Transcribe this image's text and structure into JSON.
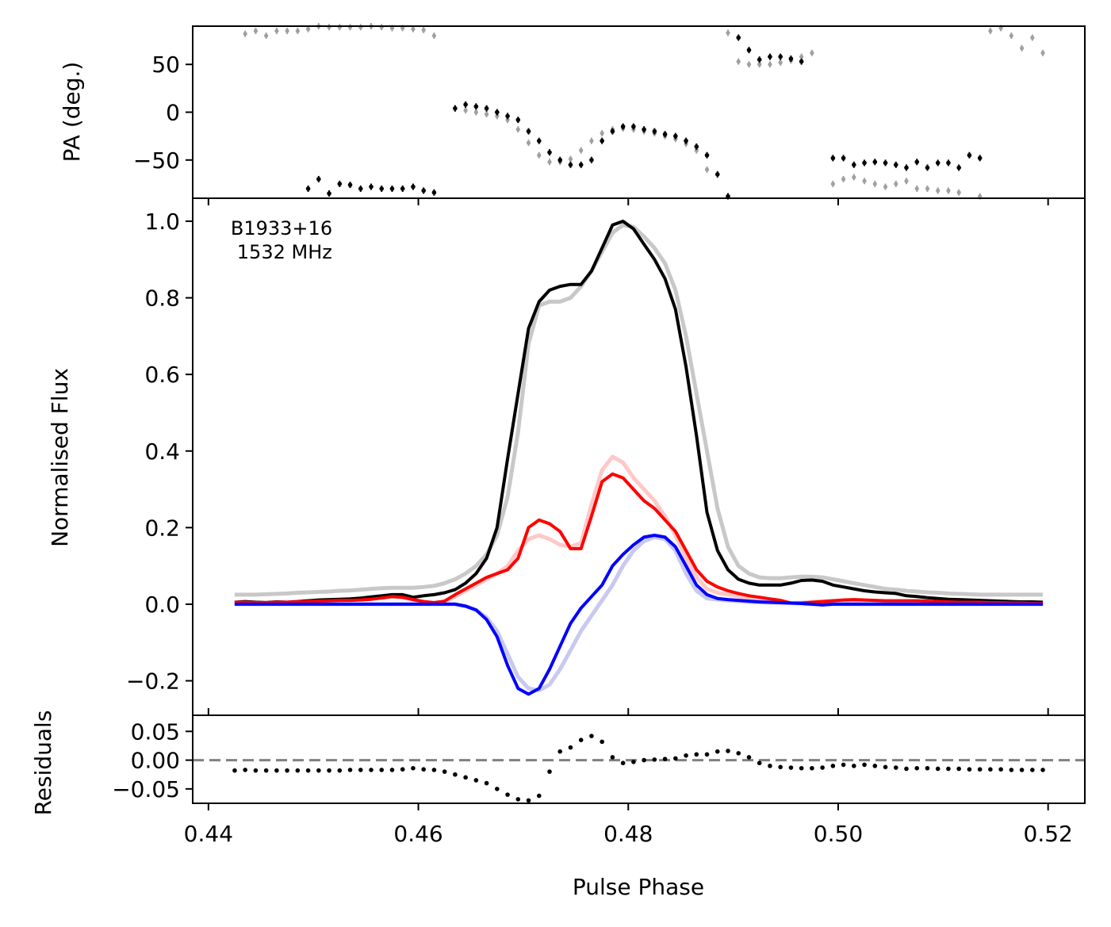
{
  "chart_data": [
    {
      "type": "scatter",
      "panel": "pa",
      "ylabel": "PA (deg.)",
      "xlim": [
        0.4385,
        0.5235
      ],
      "ylim": [
        -90,
        90
      ],
      "yticks": [
        50,
        0,
        -50
      ],
      "ytick_labels": [
        "50",
        "0",
        "−50"
      ],
      "series": [
        {
          "name": "PA (grey reference)",
          "color": "#a0a0a0",
          "x": [
            0.4435,
            0.4445,
            0.4455,
            0.4465,
            0.4475,
            0.4485,
            0.4495,
            0.4505,
            0.4515,
            0.4525,
            0.4535,
            0.4545,
            0.4555,
            0.4565,
            0.4575,
            0.4585,
            0.4595,
            0.4605,
            0.4615,
            0.4635,
            0.4645,
            0.4655,
            0.4665,
            0.4675,
            0.4685,
            0.4695,
            0.4705,
            0.4715,
            0.4725,
            0.4735,
            0.4745,
            0.4755,
            0.4765,
            0.4775,
            0.4785,
            0.4795,
            0.4805,
            0.4815,
            0.4825,
            0.4835,
            0.4845,
            0.4855,
            0.4865,
            0.4875,
            0.4895,
            0.4905,
            0.4915,
            0.4925,
            0.4935,
            0.4945,
            0.4955,
            0.4965,
            0.4975,
            0.4995,
            0.5005,
            0.5015,
            0.5025,
            0.5035,
            0.5045,
            0.5055,
            0.5065,
            0.5075,
            0.5085,
            0.5095,
            0.5105,
            0.5115,
            0.5135,
            0.5145,
            0.5155,
            0.5165,
            0.5175,
            0.5185,
            0.5195
          ],
          "y": [
            82,
            85,
            80,
            85,
            85,
            85,
            87,
            90,
            89,
            89,
            89,
            89,
            90,
            89,
            88,
            88,
            87,
            86,
            80,
            4,
            2,
            0,
            -2,
            -4,
            -8,
            -18,
            -32,
            -45,
            -52,
            -52,
            -49,
            -40,
            -30,
            -22,
            -18,
            -17,
            -18,
            -20,
            -22,
            -25,
            -28,
            -33,
            -40,
            -60,
            83,
            53,
            50,
            50,
            50,
            52,
            54,
            58,
            62,
            -75,
            -70,
            -68,
            -72,
            -75,
            -78,
            -75,
            -72,
            -80,
            -80,
            -82,
            -82,
            -84,
            -88,
            85,
            88,
            80,
            67,
            78,
            62
          ]
        },
        {
          "name": "PA (measured)",
          "color": "#000000",
          "x": [
            0.4495,
            0.4505,
            0.4515,
            0.4525,
            0.4535,
            0.4545,
            0.4555,
            0.4565,
            0.4575,
            0.4585,
            0.4595,
            0.4605,
            0.4615,
            0.4635,
            0.4645,
            0.4655,
            0.4665,
            0.4675,
            0.4685,
            0.4695,
            0.4705,
            0.4715,
            0.4725,
            0.4735,
            0.4745,
            0.4755,
            0.4765,
            0.4775,
            0.4785,
            0.4795,
            0.4805,
            0.4815,
            0.4825,
            0.4835,
            0.4845,
            0.4855,
            0.4865,
            0.4875,
            0.4885,
            0.4895,
            0.4905,
            0.4915,
            0.4925,
            0.4935,
            0.4945,
            0.4955,
            0.4965,
            0.4995,
            0.5005,
            0.5015,
            0.5025,
            0.5035,
            0.5045,
            0.5055,
            0.5065,
            0.5075,
            0.5085,
            0.5095,
            0.5105,
            0.5115,
            0.5125,
            0.5135
          ],
          "y": [
            -80,
            -70,
            -85,
            -75,
            -76,
            -80,
            -78,
            -80,
            -80,
            -80,
            -78,
            -82,
            -84,
            4,
            8,
            6,
            4,
            0,
            -4,
            -8,
            -20,
            -30,
            -42,
            -50,
            -55,
            -55,
            -50,
            -30,
            -20,
            -15,
            -15,
            -18,
            -20,
            -23,
            -25,
            -30,
            -36,
            -45,
            -65,
            -88,
            78,
            65,
            55,
            58,
            58,
            56,
            53,
            -48,
            -48,
            -55,
            -53,
            -52,
            -53,
            -55,
            -58,
            -52,
            -58,
            -53,
            -53,
            -58,
            -45,
            -48
          ]
        }
      ]
    },
    {
      "type": "line",
      "panel": "profile",
      "ylabel": "Normalised Flux",
      "annotation": "B1933+16\n 1532 MHz",
      "xlim": [
        0.4385,
        0.5235
      ],
      "ylim": [
        -0.29,
        1.06
      ],
      "yticks": [
        1.0,
        0.8,
        0.6,
        0.4,
        0.2,
        0.0,
        -0.2
      ],
      "ytick_labels": [
        "1.0",
        "0.8",
        "0.6",
        "0.4",
        "0.2",
        "0.0",
        "−0.2"
      ],
      "x": [
        0.4425,
        0.4435,
        0.4445,
        0.4455,
        0.4465,
        0.4475,
        0.4485,
        0.4495,
        0.4505,
        0.4515,
        0.4525,
        0.4535,
        0.4545,
        0.4555,
        0.4565,
        0.4575,
        0.4585,
        0.4595,
        0.4605,
        0.4615,
        0.4625,
        0.4635,
        0.4645,
        0.4655,
        0.4665,
        0.4675,
        0.4685,
        0.4695,
        0.4705,
        0.4715,
        0.4725,
        0.4735,
        0.4745,
        0.4755,
        0.4765,
        0.4775,
        0.4785,
        0.4795,
        0.4805,
        0.4815,
        0.4825,
        0.4835,
        0.4845,
        0.4855,
        0.4865,
        0.4875,
        0.4885,
        0.4895,
        0.4905,
        0.4915,
        0.4925,
        0.4935,
        0.4945,
        0.4955,
        0.4965,
        0.4975,
        0.4985,
        0.4995,
        0.5005,
        0.5015,
        0.5025,
        0.5035,
        0.5045,
        0.5055,
        0.5065,
        0.5075,
        0.5085,
        0.5095,
        0.5105,
        0.5115,
        0.5125,
        0.5135,
        0.5145,
        0.5155,
        0.5165,
        0.5175,
        0.5185,
        0.5195
      ],
      "series": [
        {
          "name": "Total intensity (model)",
          "color": "#c8c8c8",
          "width": 5,
          "values": [
            0.025,
            0.025,
            0.025,
            0.026,
            0.027,
            0.028,
            0.03,
            0.031,
            0.032,
            0.033,
            0.035,
            0.036,
            0.038,
            0.04,
            0.042,
            0.043,
            0.043,
            0.043,
            0.045,
            0.048,
            0.055,
            0.065,
            0.08,
            0.1,
            0.13,
            0.18,
            0.28,
            0.45,
            0.68,
            0.78,
            0.79,
            0.79,
            0.8,
            0.83,
            0.87,
            0.92,
            0.97,
            0.99,
            0.985,
            0.96,
            0.93,
            0.89,
            0.82,
            0.7,
            0.55,
            0.4,
            0.25,
            0.15,
            0.1,
            0.08,
            0.07,
            0.068,
            0.068,
            0.07,
            0.072,
            0.072,
            0.07,
            0.065,
            0.06,
            0.055,
            0.05,
            0.045,
            0.04,
            0.038,
            0.035,
            0.033,
            0.031,
            0.03,
            0.028,
            0.027,
            0.026,
            0.025,
            0.025,
            0.025,
            0.025,
            0.025,
            0.025,
            0.025
          ]
        },
        {
          "name": "Linear polarisation (model)",
          "color": "#ffc8c8",
          "width": 5,
          "values": [
            0.005,
            0.005,
            0.005,
            0.005,
            0.005,
            0.006,
            0.006,
            0.007,
            0.008,
            0.009,
            0.01,
            0.012,
            0.014,
            0.016,
            0.018,
            0.02,
            0.018,
            0.012,
            0.006,
            0.004,
            0.006,
            0.02,
            0.035,
            0.05,
            0.065,
            0.08,
            0.1,
            0.14,
            0.17,
            0.18,
            0.17,
            0.155,
            0.15,
            0.16,
            0.26,
            0.35,
            0.385,
            0.37,
            0.33,
            0.3,
            0.27,
            0.23,
            0.18,
            0.12,
            0.07,
            0.04,
            0.03,
            0.025,
            0.02,
            0.016,
            0.012,
            0.008,
            0.004,
            0.003,
            0.004,
            0.006,
            0.008,
            0.009,
            0.009,
            0.008,
            0.008,
            0.007,
            0.007,
            0.007,
            0.006,
            0.006,
            0.006,
            0.005,
            0.005,
            0.005,
            0.005,
            0.005,
            0.005,
            0.005,
            0.005,
            0.005,
            0.005,
            0.005
          ]
        },
        {
          "name": "Circular polarisation (model)",
          "color": "#c8c8f0",
          "width": 5,
          "values": [
            0,
            0,
            0,
            0,
            0,
            0,
            0,
            0,
            0,
            0,
            0,
            0,
            0,
            0,
            0,
            0,
            0,
            0,
            0,
            0,
            0,
            0,
            -0.005,
            -0.015,
            -0.035,
            -0.07,
            -0.13,
            -0.19,
            -0.22,
            -0.225,
            -0.21,
            -0.17,
            -0.12,
            -0.07,
            -0.03,
            0.01,
            0.05,
            0.1,
            0.14,
            0.165,
            0.175,
            0.17,
            0.14,
            0.08,
            0.035,
            0.015,
            0.012,
            0.01,
            0.008,
            0.006,
            0.005,
            0.004,
            0.004,
            0.003,
            0.002,
            0,
            0,
            0,
            0,
            0,
            0,
            0,
            0,
            0,
            0,
            0,
            0,
            0,
            0,
            0,
            0,
            0,
            0,
            0,
            0,
            0,
            0,
            0
          ]
        },
        {
          "name": "Total intensity",
          "color": "#000000",
          "width": 4,
          "values": [
            0.005,
            0.007,
            0.005,
            0.004,
            0.006,
            0.005,
            0.007,
            0.009,
            0.011,
            0.012,
            0.013,
            0.014,
            0.016,
            0.019,
            0.022,
            0.025,
            0.025,
            0.018,
            0.022,
            0.025,
            0.03,
            0.038,
            0.055,
            0.08,
            0.12,
            0.2,
            0.38,
            0.55,
            0.72,
            0.79,
            0.82,
            0.83,
            0.835,
            0.835,
            0.87,
            0.93,
            0.99,
            1.0,
            0.98,
            0.94,
            0.9,
            0.85,
            0.77,
            0.62,
            0.44,
            0.24,
            0.14,
            0.09,
            0.065,
            0.055,
            0.05,
            0.05,
            0.05,
            0.055,
            0.062,
            0.063,
            0.06,
            0.05,
            0.045,
            0.04,
            0.035,
            0.032,
            0.03,
            0.028,
            0.022,
            0.02,
            0.017,
            0.015,
            0.013,
            0.012,
            0.011,
            0.01,
            0.009,
            0.008,
            0.007,
            0.006,
            0.006,
            0.005
          ]
        },
        {
          "name": "Linear polarisation",
          "color": "#ff0000",
          "width": 4,
          "values": [
            0.005,
            0.005,
            0.004,
            0.004,
            0.005,
            0.005,
            0.006,
            0.007,
            0.008,
            0.009,
            0.01,
            0.01,
            0.011,
            0.013,
            0.016,
            0.02,
            0.018,
            0.012,
            0.007,
            0.004,
            0.008,
            0.025,
            0.04,
            0.055,
            0.07,
            0.08,
            0.09,
            0.12,
            0.2,
            0.22,
            0.21,
            0.19,
            0.145,
            0.145,
            0.23,
            0.32,
            0.34,
            0.33,
            0.3,
            0.27,
            0.25,
            0.22,
            0.19,
            0.14,
            0.09,
            0.06,
            0.045,
            0.035,
            0.028,
            0.022,
            0.018,
            0.014,
            0.01,
            0.003,
            0.003,
            0.005,
            0.007,
            0.009,
            0.011,
            0.012,
            0.011,
            0.01,
            0.009,
            0.009,
            0.009,
            0.009,
            0.008,
            0.007,
            0.006,
            0.005,
            0.005,
            0.005,
            0.004,
            0.004,
            0.003,
            0.003,
            0.002,
            0.002
          ]
        },
        {
          "name": "Circular polarisation",
          "color": "#0000ff",
          "width": 4,
          "values": [
            0,
            0,
            0,
            0,
            0,
            0,
            0,
            0,
            0,
            0,
            0,
            0,
            0,
            0,
            0,
            0,
            0,
            0,
            0,
            0,
            0,
            0,
            -0.005,
            -0.015,
            -0.04,
            -0.085,
            -0.16,
            -0.22,
            -0.235,
            -0.22,
            -0.17,
            -0.11,
            -0.05,
            -0.01,
            0.02,
            0.05,
            0.1,
            0.13,
            0.155,
            0.175,
            0.18,
            0.175,
            0.15,
            0.1,
            0.05,
            0.025,
            0.015,
            0.012,
            0.01,
            0.008,
            0.006,
            0.005,
            0.004,
            0.003,
            0.002,
            0,
            -0.002,
            0,
            0,
            0,
            0,
            0,
            0,
            0,
            0,
            0,
            0,
            0,
            0,
            0,
            0,
            0,
            0,
            0,
            0,
            0,
            0,
            0
          ]
        }
      ]
    },
    {
      "type": "scatter",
      "panel": "residuals",
      "ylabel": "Residuals",
      "xlabel": "Pulse Phase",
      "xlim": [
        0.4385,
        0.5235
      ],
      "ylim": [
        -0.075,
        0.078
      ],
      "reference_line": {
        "y": 0.0,
        "style": "dashed",
        "color": "#808080"
      },
      "yticks": [
        0.05,
        0.0,
        -0.05
      ],
      "ytick_labels": [
        "0.05",
        "0.00",
        "−0.05"
      ],
      "xticks": [
        0.44,
        0.46,
        0.48,
        0.5,
        0.52
      ],
      "xtick_labels": [
        "0.44",
        "0.46",
        "0.48",
        "0.50",
        "0.52"
      ],
      "x": [
        0.4425,
        0.4435,
        0.4445,
        0.4455,
        0.4465,
        0.4475,
        0.4485,
        0.4495,
        0.4505,
        0.4515,
        0.4525,
        0.4535,
        0.4545,
        0.4555,
        0.4565,
        0.4575,
        0.4585,
        0.4595,
        0.4605,
        0.4615,
        0.4625,
        0.4635,
        0.4645,
        0.4655,
        0.4665,
        0.4675,
        0.4685,
        0.4695,
        0.4705,
        0.4715,
        0.4725,
        0.4735,
        0.4745,
        0.4755,
        0.4765,
        0.4775,
        0.4785,
        0.4795,
        0.4805,
        0.4815,
        0.4825,
        0.4835,
        0.4845,
        0.4855,
        0.4865,
        0.4875,
        0.4885,
        0.4895,
        0.4905,
        0.4915,
        0.4925,
        0.4935,
        0.4945,
        0.4955,
        0.4965,
        0.4975,
        0.4985,
        0.4995,
        0.5005,
        0.5015,
        0.5025,
        0.5035,
        0.5045,
        0.5055,
        0.5065,
        0.5075,
        0.5085,
        0.5095,
        0.5105,
        0.5115,
        0.5125,
        0.5135,
        0.5145,
        0.5155,
        0.5165,
        0.5175,
        0.5185,
        0.5195
      ],
      "values": [
        -0.018,
        -0.017,
        -0.018,
        -0.018,
        -0.018,
        -0.018,
        -0.018,
        -0.018,
        -0.018,
        -0.018,
        -0.018,
        -0.017,
        -0.017,
        -0.017,
        -0.017,
        -0.017,
        -0.016,
        -0.014,
        -0.016,
        -0.017,
        -0.02,
        -0.025,
        -0.03,
        -0.035,
        -0.04,
        -0.05,
        -0.06,
        -0.068,
        -0.07,
        -0.062,
        -0.02,
        0.015,
        0.022,
        0.035,
        0.042,
        0.032,
        0.005,
        -0.005,
        -0.003,
        0.0,
        0.001,
        0.002,
        0.003,
        0.008,
        0.01,
        0.01,
        0.015,
        0.016,
        0.012,
        0.005,
        -0.005,
        -0.01,
        -0.012,
        -0.013,
        -0.014,
        -0.014,
        -0.013,
        -0.01,
        -0.008,
        -0.01,
        -0.008,
        -0.01,
        -0.012,
        -0.013,
        -0.015,
        -0.014,
        -0.014,
        -0.015,
        -0.015,
        -0.015,
        -0.016,
        -0.016,
        -0.016,
        -0.016,
        -0.017,
        -0.017,
        -0.017,
        -0.017
      ]
    }
  ]
}
